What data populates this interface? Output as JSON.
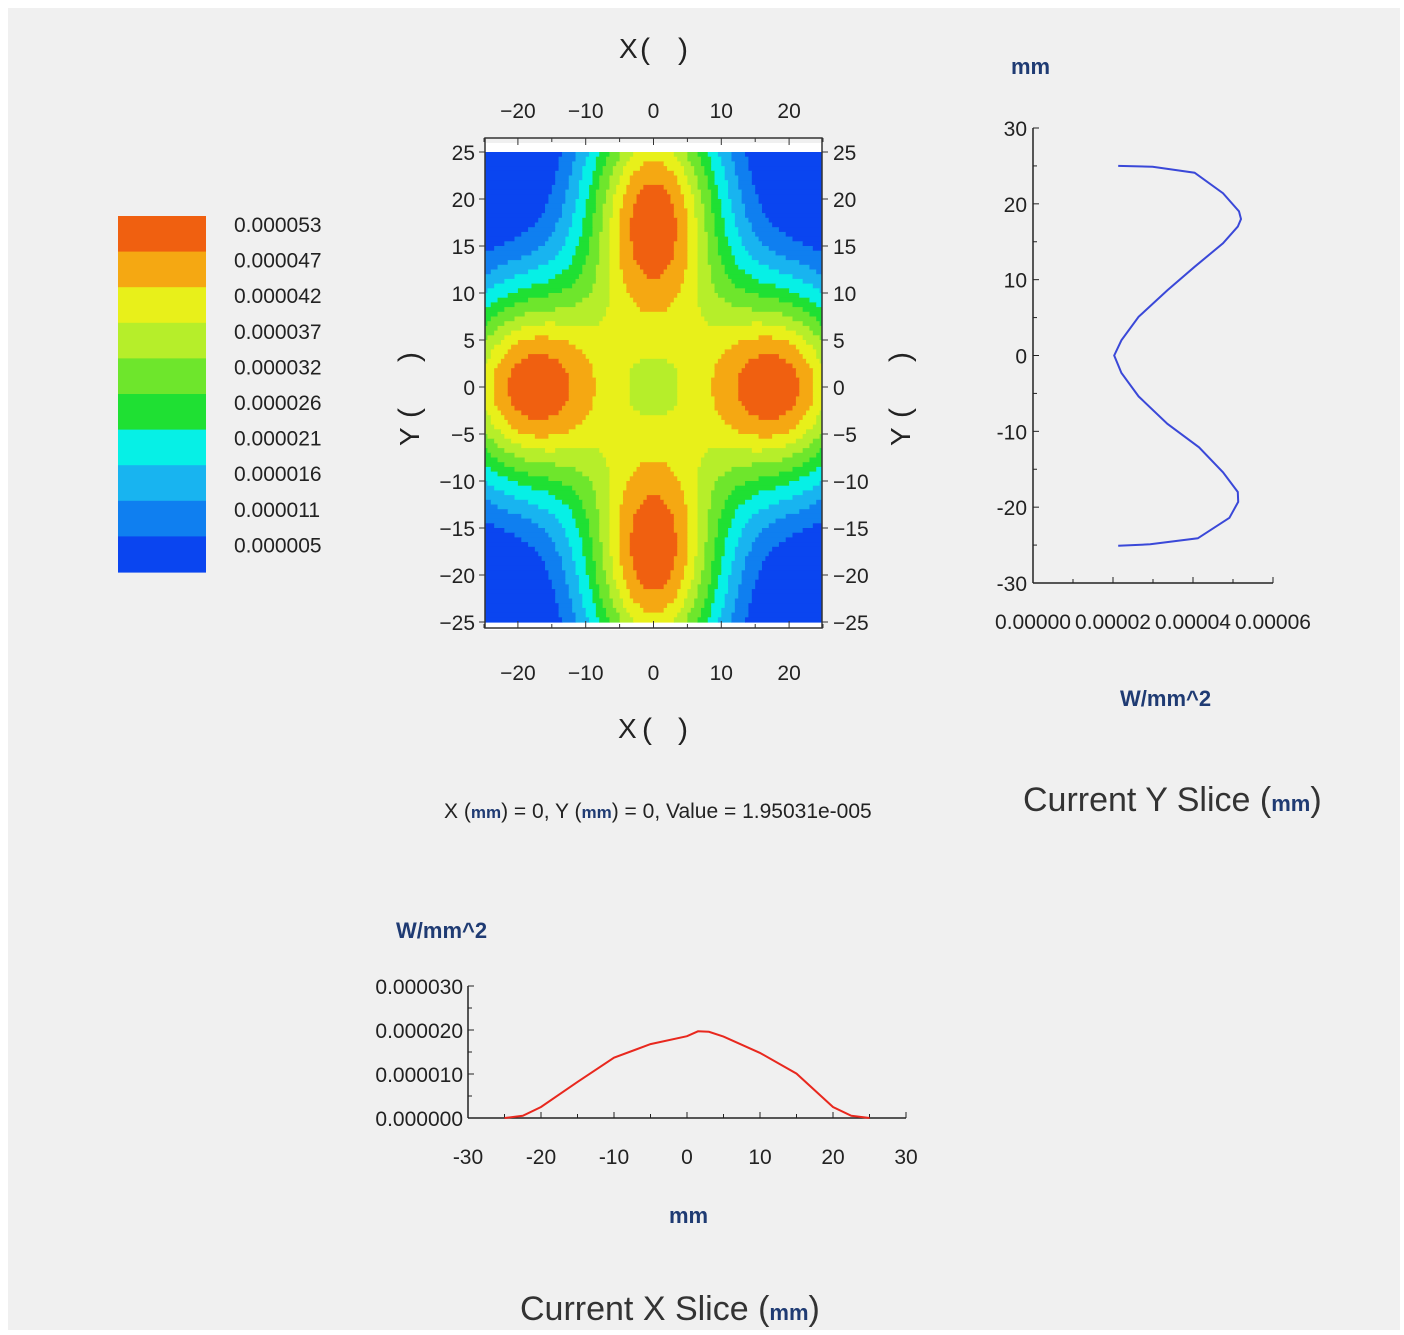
{
  "chart_data": [
    {
      "type": "heatmap",
      "title": "",
      "xlabel": "X ( )",
      "ylabel": "Y ( )",
      "xlim": [
        -25,
        25
      ],
      "ylim": [
        -25,
        25
      ],
      "x_ticks": [
        -20,
        -10,
        0,
        10,
        20
      ],
      "y_ticks": [
        -25,
        -20,
        -15,
        -10,
        -5,
        0,
        5,
        10,
        15,
        20,
        25
      ],
      "legend": {
        "placement": "left",
        "levels": [
          "0.000053",
          "0.000047",
          "0.000042",
          "0.000037",
          "0.000032",
          "0.000026",
          "0.000021",
          "0.000016",
          "0.000011",
          "0.000005"
        ],
        "colors": [
          "#f06010",
          "#f5a812",
          "#e8f01a",
          "#b6ee2a",
          "#6ee62c",
          "#1fe033",
          "#06f0e6",
          "#18b4f0",
          "#0f7ff0",
          "#0a45f0"
        ]
      },
      "peaks": [
        {
          "x": 0,
          "y": 18,
          "value": 5.3e-05
        },
        {
          "x": 0,
          "y": -18,
          "value": 5.3e-05
        },
        {
          "x": -18,
          "y": 0,
          "value": 5.3e-05
        },
        {
          "x": 18,
          "y": 0,
          "value": 5.3e-05
        }
      ],
      "readout": {
        "x_label": "X",
        "x_unit": "mm",
        "x_value": "0",
        "y_label": "Y",
        "y_unit": "mm",
        "y_value": "0",
        "value_label": "Value",
        "value": "1.95031e-005"
      }
    },
    {
      "type": "line",
      "title": "Current Y Slice",
      "title_unit": "mm",
      "xlabel": "W/mm^2",
      "ylabel": "mm",
      "xlim": [
        0,
        6e-05
      ],
      "ylim": [
        -30,
        30
      ],
      "x_ticks": [
        "0.00000",
        "0.00002",
        "0.00004",
        "0.00006"
      ],
      "y_ticks": [
        -30,
        -20,
        -10,
        0,
        10,
        20,
        30
      ],
      "grid": false,
      "color": "#3a48d8",
      "points": [
        {
          "x": 2.13e-05,
          "y": 25
        },
        {
          "x": 2.99e-05,
          "y": 24.9
        },
        {
          "x": 4.04e-05,
          "y": 24.1
        },
        {
          "x": 4.75e-05,
          "y": 21.4
        },
        {
          "x": 5.15e-05,
          "y": 19
        },
        {
          "x": 5.2e-05,
          "y": 18
        },
        {
          "x": 5.12e-05,
          "y": 17
        },
        {
          "x": 4.75e-05,
          "y": 14.8
        },
        {
          "x": 4.04e-05,
          "y": 11.7
        },
        {
          "x": 3.36e-05,
          "y": 8.6
        },
        {
          "x": 2.64e-05,
          "y": 5.1
        },
        {
          "x": 2.21e-05,
          "y": 2
        },
        {
          "x": 2.03e-05,
          "y": 0
        },
        {
          "x": 2.21e-05,
          "y": -2.3
        },
        {
          "x": 2.64e-05,
          "y": -5.4
        },
        {
          "x": 3.36e-05,
          "y": -9
        },
        {
          "x": 4.15e-05,
          "y": -12.1
        },
        {
          "x": 4.75e-05,
          "y": -15.4
        },
        {
          "x": 5.12e-05,
          "y": -18
        },
        {
          "x": 5.13e-05,
          "y": -19.3
        },
        {
          "x": 4.91e-05,
          "y": -21.4
        },
        {
          "x": 4.12e-05,
          "y": -24.1
        },
        {
          "x": 2.93e-05,
          "y": -24.9
        },
        {
          "x": 2.13e-05,
          "y": -25.1
        }
      ]
    },
    {
      "type": "line",
      "title": "Current X Slice",
      "title_unit": "mm",
      "xlabel": "mm",
      "ylabel": "W/mm^2",
      "xlim": [
        -30,
        30
      ],
      "ylim": [
        0,
        3e-05
      ],
      "x_ticks": [
        -30,
        -20,
        -10,
        0,
        10,
        20,
        30
      ],
      "y_ticks": [
        "0.000000",
        "0.000010",
        "0.000020",
        "0.000030"
      ],
      "grid": false,
      "color": "#e8281e",
      "points": [
        {
          "x": -25,
          "y": 0
        },
        {
          "x": -22.5,
          "y": 5e-07
        },
        {
          "x": -20,
          "y": 2.5e-06
        },
        {
          "x": -15,
          "y": 8.2e-06
        },
        {
          "x": -10,
          "y": 1.37e-05
        },
        {
          "x": -5,
          "y": 1.68e-05
        },
        {
          "x": 0,
          "y": 1.86e-05
        },
        {
          "x": 1.5,
          "y": 1.97e-05
        },
        {
          "x": 3,
          "y": 1.96e-05
        },
        {
          "x": 5,
          "y": 1.85e-05
        },
        {
          "x": 10,
          "y": 1.48e-05
        },
        {
          "x": 15,
          "y": 1.01e-05
        },
        {
          "x": 20,
          "y": 2.5e-06
        },
        {
          "x": 22.5,
          "y": 5e-07
        },
        {
          "x": 25,
          "y": 0
        }
      ]
    }
  ]
}
